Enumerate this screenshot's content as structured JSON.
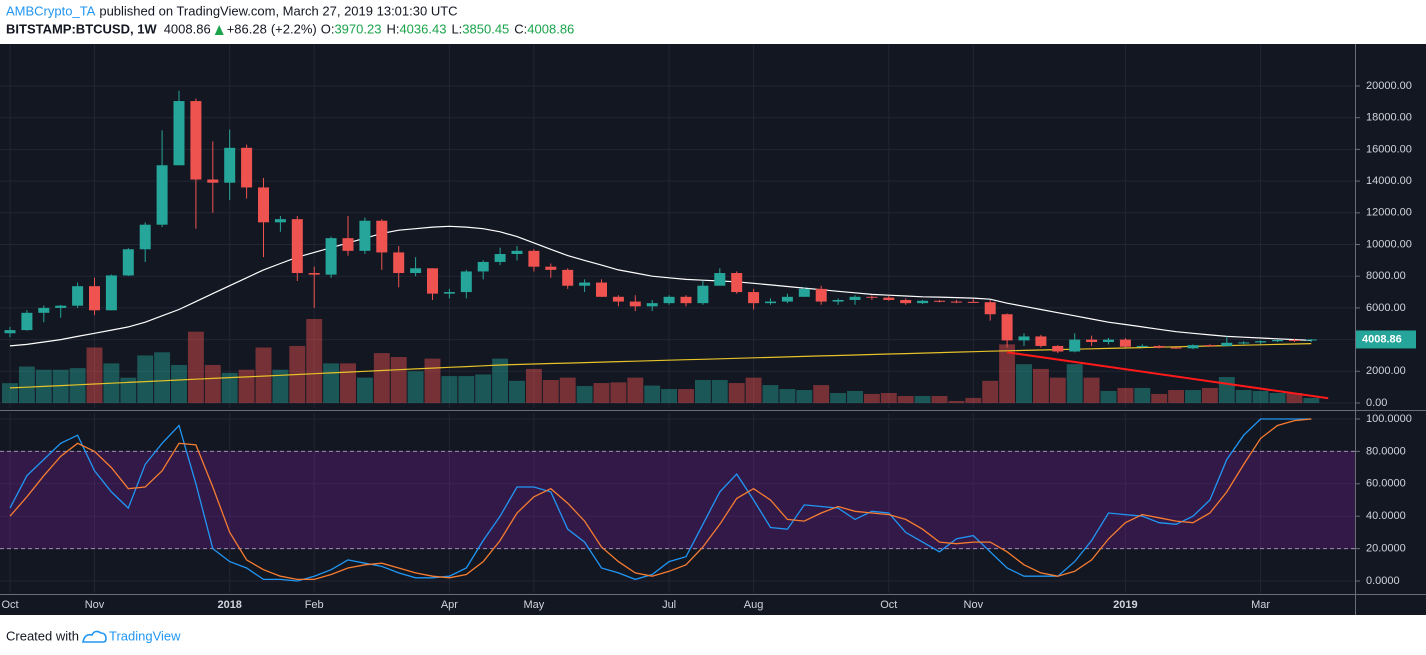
{
  "header": {
    "author": "AMBCrypto_TA",
    "published": "published on TradingView.com, March 27, 2019 13:01:30 UTC",
    "symbol": "BITSTAMP:BTCUSD, 1W",
    "change": "+86.28",
    "change_pct": "(+2.2%)",
    "ohlc_labels": [
      "O:",
      "H:",
      "L:",
      "C:"
    ]
  },
  "footer": {
    "created": "Created with",
    "brand": "TradingView"
  },
  "chart_data": [
    {
      "type": "candlestick",
      "categories": [
        "Oct",
        null,
        null,
        null,
        null,
        "Nov",
        null,
        null,
        null,
        null,
        null,
        null,
        null,
        "2018",
        null,
        null,
        null,
        null,
        "Feb",
        null,
        null,
        null,
        null,
        null,
        null,
        null,
        "Apr",
        null,
        null,
        null,
        null,
        "May",
        null,
        null,
        null,
        null,
        null,
        null,
        null,
        "Jul",
        null,
        null,
        null,
        null,
        "Aug",
        null,
        null,
        null,
        null,
        null,
        null,
        null,
        "Oct",
        null,
        null,
        null,
        null,
        "Nov",
        null,
        null,
        null,
        null,
        null,
        null,
        null,
        null,
        "2019",
        null,
        null,
        null,
        null,
        null,
        null,
        null,
        "Mar",
        null,
        null,
        null
      ],
      "open": [
        4400,
        4600,
        5690,
        6000,
        6140,
        7370,
        5850,
        8050,
        9700,
        11250,
        15000,
        19050,
        14100,
        13900,
        16100,
        13600,
        11400,
        11600,
        8200,
        8100,
        10400,
        9600,
        11500,
        9500,
        8200,
        8500,
        6900,
        7000,
        8300,
        8900,
        9400,
        9600,
        8600,
        8400,
        7400,
        7600,
        6700,
        6400,
        6100,
        6300,
        6700,
        6300,
        7400,
        8200,
        7000,
        6300,
        6400,
        6700,
        7200,
        6400,
        6500,
        6700,
        6650,
        6500,
        6300,
        6450,
        6400,
        6380,
        6360,
        5600,
        3950,
        4200,
        3600,
        3250,
        4000,
        3850,
        4000,
        3550,
        3600,
        3500,
        3450,
        3650,
        3600,
        3800,
        3820,
        3900,
        3980,
        3970.23
      ],
      "high": [
        4800,
        5860,
        6150,
        6190,
        7600,
        7900,
        8100,
        9770,
        11400,
        17200,
        19700,
        19200,
        16500,
        17250,
        16300,
        14200,
        11800,
        11800,
        8600,
        10500,
        11800,
        11700,
        11600,
        9900,
        9200,
        8500,
        7200,
        8400,
        9000,
        9800,
        9900,
        9700,
        8800,
        8500,
        7800,
        7800,
        6800,
        6800,
        6500,
        6800,
        6800,
        7700,
        8500,
        8300,
        7200,
        6600,
        6900,
        7300,
        7400,
        6600,
        6800,
        6800,
        6750,
        6600,
        6500,
        6500,
        6500,
        6550,
        6500,
        5650,
        4400,
        4300,
        3650,
        4400,
        4250,
        4100,
        4100,
        3700,
        3650,
        3500,
        3700,
        3700,
        4200,
        3900,
        3950,
        4000,
        4050,
        4036.43
      ],
      "low": [
        4150,
        4560,
        5100,
        5380,
        6000,
        5550,
        5840,
        8000,
        8900,
        11100,
        15000,
        11000,
        12000,
        12800,
        12900,
        9200,
        10800,
        7700,
        6000,
        7900,
        9300,
        9400,
        8400,
        7300,
        8000,
        6500,
        6600,
        6600,
        7800,
        8700,
        9000,
        8300,
        7900,
        7200,
        7000,
        6700,
        6100,
        5800,
        5800,
        6200,
        6100,
        6200,
        7400,
        6900,
        5900,
        6200,
        6300,
        6700,
        6200,
        6200,
        6200,
        6500,
        6450,
        6200,
        6250,
        6350,
        6300,
        6350,
        5200,
        3500,
        3600,
        3500,
        3150,
        3200,
        3600,
        3700,
        3500,
        3500,
        3450,
        3400,
        3400,
        3550,
        3600,
        3700,
        3700,
        3850,
        3850,
        3850.45
      ],
      "close": [
        4600,
        5690,
        6000,
        6140,
        7370,
        5850,
        8050,
        9700,
        11250,
        15000,
        19050,
        14100,
        13900,
        16100,
        13600,
        11400,
        11600,
        8200,
        8100,
        10400,
        9600,
        11500,
        9500,
        8200,
        8500,
        6900,
        7000,
        8300,
        8900,
        9400,
        9600,
        8600,
        8400,
        7400,
        7600,
        6700,
        6400,
        6100,
        6300,
        6700,
        6300,
        7400,
        8200,
        7000,
        6300,
        6400,
        6700,
        7200,
        6400,
        6500,
        6700,
        6650,
        6500,
        6300,
        6450,
        6400,
        6380,
        6360,
        5600,
        3950,
        4200,
        3600,
        3250,
        4000,
        3850,
        4000,
        3550,
        3600,
        3500,
        3450,
        3650,
        3600,
        3800,
        3820,
        3900,
        3980,
        3922.58,
        4008.86
      ],
      "volume": [
        1250,
        2300,
        2100,
        2100,
        2200,
        3500,
        2500,
        1600,
        3000,
        3200,
        2400,
        4500,
        2400,
        1900,
        2100,
        3500,
        2100,
        3600,
        5300,
        2500,
        2500,
        1600,
        3150,
        2900,
        2000,
        2800,
        1700,
        1700,
        1800,
        2800,
        1400,
        2150,
        1450,
        1600,
        1070,
        1260,
        1300,
        1600,
        1100,
        880,
        880,
        1450,
        1450,
        1260,
        1600,
        1130,
        880,
        820,
        1130,
        630,
        760,
        570,
        630,
        440,
        440,
        440,
        130,
        320,
        1400,
        3700,
        2450,
        2150,
        1600,
        2450,
        1600,
        760,
        950,
        950,
        570,
        820,
        820,
        950,
        1640,
        820,
        760,
        630,
        630,
        320
      ],
      "up_color": "#26a69a",
      "down_color": "#ef5350",
      "series": [
        {
          "color": "#ffffff",
          "values": [
            3600,
            3700,
            3850,
            4000,
            4200,
            4400,
            4600,
            4800,
            5100,
            5500,
            5900,
            6400,
            6900,
            7400,
            7900,
            8400,
            8800,
            9200,
            9500,
            9800,
            10100,
            10400,
            10700,
            10900,
            11000,
            11100,
            11150,
            11100,
            11000,
            10800,
            10500,
            10100,
            9700,
            9300,
            9000,
            8700,
            8400,
            8200,
            8000,
            7900,
            7800,
            7750,
            7700,
            7650,
            7550,
            7450,
            7350,
            7250,
            7150,
            7050,
            6950,
            6850,
            6800,
            6750,
            6700,
            6680,
            6650,
            6620,
            6550,
            6300,
            6100,
            5900,
            5700,
            5500,
            5300,
            5100,
            4950,
            4800,
            4650,
            4500,
            4400,
            4300,
            4200,
            4150,
            4100,
            4050,
            4000,
            3950
          ]
        },
        {
          "color": "#e6c229",
          "values": [
            950,
            1000,
            1050,
            1100,
            1150,
            1200,
            1250,
            1300,
            1350,
            1400,
            1450,
            1500,
            1550,
            1600,
            1650,
            1700,
            1750,
            1800,
            1850,
            1900,
            1950,
            2000,
            2050,
            2100,
            2150,
            2200,
            2250,
            2300,
            2350,
            2400,
            2430,
            2460,
            2490,
            2520,
            2550,
            2580,
            2610,
            2640,
            2670,
            2700,
            2730,
            2760,
            2790,
            2820,
            2850,
            2880,
            2910,
            2940,
            2970,
            3000,
            3030,
            3060,
            3090,
            3120,
            3150,
            3180,
            3210,
            3240,
            3270,
            3295,
            3320,
            3345,
            3370,
            3395,
            3420,
            3445,
            3470,
            3495,
            3520,
            3545,
            3570,
            3595,
            3620,
            3645,
            3670,
            3695,
            3720,
            3745
          ]
        }
      ],
      "trendline": {
        "x": [
          59,
          78
        ],
        "y": [
          3200,
          300
        ],
        "color": "#ff1a1a"
      },
      "ylim": [
        -315,
        22650
      ],
      "yticks": [
        {
          "value": 0,
          "label": "0.00"
        },
        {
          "value": 2000,
          "label": "2000.00"
        },
        {
          "value": 4000,
          "label": "4000.00"
        },
        {
          "value": 6000,
          "label": "6000.00"
        },
        {
          "value": 8000,
          "label": "8000.00"
        },
        {
          "value": 10000,
          "label": "10000.00"
        },
        {
          "value": 12000,
          "label": "12000.00"
        },
        {
          "value": 14000,
          "label": "14000.00"
        },
        {
          "value": 16000,
          "label": "16000.00"
        },
        {
          "value": 18000,
          "label": "18000.00"
        },
        {
          "value": 20000,
          "label": "20000.00"
        }
      ],
      "grid": true
    },
    {
      "type": "line",
      "series": [
        {
          "color": "#2196f3",
          "values": [
            45,
            65,
            75,
            85,
            90,
            68,
            55,
            45,
            72,
            85,
            96,
            60,
            20,
            12,
            8,
            1,
            1,
            0,
            3,
            7,
            13,
            11,
            9,
            5,
            2,
            2,
            3,
            8,
            25,
            40,
            58,
            58,
            55,
            32,
            24,
            8,
            5,
            1,
            4,
            12,
            15,
            35,
            55,
            66,
            50,
            33,
            32,
            47,
            46,
            45,
            38,
            43,
            42,
            30,
            24,
            18,
            26,
            28,
            18,
            8,
            3,
            3,
            3,
            12,
            25,
            42,
            41,
            40,
            36,
            35,
            40,
            50,
            75,
            90,
            100,
            100,
            100,
            100
          ]
        },
        {
          "color": "#f57c30",
          "values": [
            40,
            52,
            65,
            77,
            85,
            80,
            70,
            57,
            58,
            68,
            85,
            84,
            58,
            30,
            13,
            7,
            3,
            1,
            1,
            4,
            8,
            10,
            11,
            8,
            5,
            3,
            2,
            4,
            12,
            25,
            42,
            52,
            57,
            48,
            37,
            21,
            12,
            5,
            3,
            6,
            10,
            21,
            35,
            51,
            57,
            50,
            38,
            37,
            42,
            46,
            43,
            42,
            41,
            38,
            32,
            24,
            23,
            24,
            24,
            18,
            10,
            5,
            3,
            6,
            13,
            26,
            36,
            41,
            39,
            37,
            36,
            42,
            55,
            72,
            88,
            96,
            99,
            100
          ]
        }
      ],
      "band": [
        20,
        80
      ],
      "band_color": "#7b1fa2",
      "ylim": [
        -7.4,
        103.7
      ],
      "yticks": [
        {
          "value": 0,
          "label": "0.0000"
        },
        {
          "value": 20,
          "label": "20.0000"
        },
        {
          "value": 40,
          "label": "40.0000"
        },
        {
          "value": 60,
          "label": "60.0000"
        },
        {
          "value": 80,
          "label": "80.0000"
        },
        {
          "value": 100,
          "label": "100.0000"
        }
      ],
      "grid": true
    }
  ]
}
